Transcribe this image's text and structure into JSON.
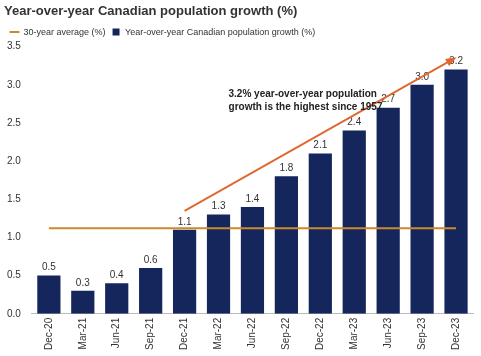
{
  "chart_data": {
    "type": "bar",
    "title": "Year-over-year Canadian population growth (%)",
    "categories": [
      "Dec-20",
      "Mar-21",
      "Jun-21",
      "Sep-21",
      "Dec-21",
      "Mar-22",
      "Jun-22",
      "Sep-22",
      "Dec-22",
      "Mar-23",
      "Jun-23",
      "Sep-23",
      "Dec-23"
    ],
    "series": [
      {
        "name": "Year-over-year Canadian population growth (%)",
        "type": "bar",
        "color": "#14265c",
        "values": [
          0.5,
          0.3,
          0.4,
          0.6,
          1.1,
          1.3,
          1.4,
          1.8,
          2.1,
          2.4,
          2.7,
          3,
          3.2
        ],
        "value_labels": [
          "0.5",
          "0.3",
          "0.4",
          "0.6",
          "1.1",
          "1.3",
          "1.4",
          "1.8",
          "2.1",
          "2.4",
          "2.7",
          "3.0",
          "3.2"
        ],
        "data_labels": true
      },
      {
        "name": "30-year average (%)",
        "type": "line",
        "color": "#c98a2b",
        "line_style": "solid",
        "marker": "none",
        "values": [
          1.12,
          1.12,
          1.12,
          1.12,
          1.12,
          1.12,
          1.12,
          1.12,
          1.12,
          1.12,
          1.12,
          1.12,
          1.12
        ]
      }
    ],
    "ylim": [
      0,
      3.5
    ],
    "yticks": [
      {
        "value": 0,
        "label": "0.0"
      },
      0.5,
      {
        "value": 1,
        "label": "1.0"
      },
      1.5,
      {
        "value": 2,
        "label": "2.0"
      },
      2.5,
      {
        "value": 3,
        "label": "3.0"
      },
      3.5
    ],
    "grid": false,
    "legend": "top-left",
    "annotations": [
      {
        "text": "3.2% year-over-year population growth is the highest since 1957."
      }
    ]
  }
}
